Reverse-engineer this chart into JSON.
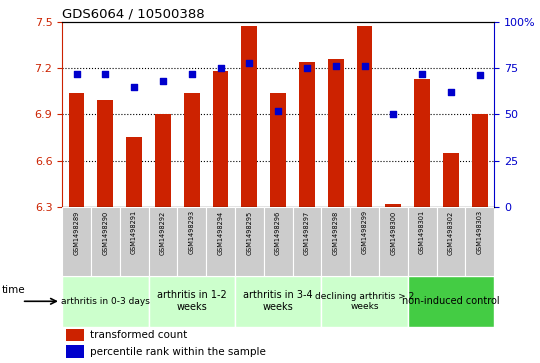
{
  "title": "GDS6064 / 10500388",
  "samples": [
    "GSM1498289",
    "GSM1498290",
    "GSM1498291",
    "GSM1498292",
    "GSM1498293",
    "GSM1498294",
    "GSM1498295",
    "GSM1498296",
    "GSM1498297",
    "GSM1498298",
    "GSM1498299",
    "GSM1498300",
    "GSM1498301",
    "GSM1498302",
    "GSM1498303"
  ],
  "transformed_count": [
    7.04,
    6.99,
    6.75,
    6.9,
    7.04,
    7.18,
    7.47,
    7.04,
    7.24,
    7.26,
    7.47,
    6.32,
    7.13,
    6.65,
    6.9
  ],
  "percentile_rank": [
    72,
    72,
    65,
    68,
    72,
    75,
    78,
    52,
    75,
    76,
    76,
    50,
    72,
    62,
    71
  ],
  "ylim_left": [
    6.3,
    7.5
  ],
  "ylim_right": [
    0,
    100
  ],
  "yticks_left": [
    6.3,
    6.6,
    6.9,
    7.2,
    7.5
  ],
  "yticks_right": [
    0,
    25,
    50,
    75,
    100
  ],
  "bar_color": "#cc2200",
  "dot_color": "#0000cc",
  "grid_color": "#000000",
  "group_configs": [
    {
      "start": 0,
      "end": 3,
      "color": "#ccffcc",
      "label": "arthritis in 0-3 days",
      "fontsize": 6.5
    },
    {
      "start": 3,
      "end": 6,
      "color": "#ccffcc",
      "label": "arthritis in 1-2\nweeks",
      "fontsize": 7
    },
    {
      "start": 6,
      "end": 9,
      "color": "#ccffcc",
      "label": "arthritis in 3-4\nweeks",
      "fontsize": 7
    },
    {
      "start": 9,
      "end": 12,
      "color": "#ccffcc",
      "label": "declining arthritis > 2\nweeks",
      "fontsize": 6.5
    },
    {
      "start": 12,
      "end": 15,
      "color": "#44cc44",
      "label": "non-induced control",
      "fontsize": 7
    }
  ],
  "sample_bg": "#cccccc",
  "legend_items": [
    {
      "color": "#cc2200",
      "label": "transformed count"
    },
    {
      "color": "#0000cc",
      "label": "percentile rank within the sample"
    }
  ]
}
